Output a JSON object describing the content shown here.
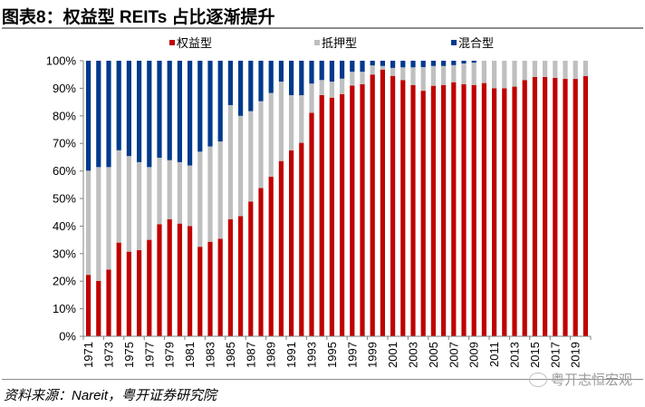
{
  "header": {
    "title": "图表8：权益型 REITs 占比逐渐提升"
  },
  "footer": {
    "source": "资料来源：Nareit，粤开证券研究院",
    "watermark": "粤开志恒宏观"
  },
  "chart_data": {
    "type": "bar",
    "stacked": true,
    "title": "权益型 REITs 占比逐渐提升",
    "xlabel": "",
    "ylabel": "",
    "ylim": [
      0,
      100
    ],
    "y_ticks": [
      "0%",
      "10%",
      "20%",
      "30%",
      "40%",
      "50%",
      "60%",
      "70%",
      "80%",
      "90%",
      "100%"
    ],
    "y_tick_values": [
      0,
      10,
      20,
      30,
      40,
      50,
      60,
      70,
      80,
      90,
      100
    ],
    "grid": false,
    "legend_position": "top-center",
    "categories": [
      "1971",
      "1972",
      "1973",
      "1974",
      "1975",
      "1976",
      "1977",
      "1978",
      "1979",
      "1980",
      "1981",
      "1982",
      "1983",
      "1984",
      "1985",
      "1986",
      "1987",
      "1988",
      "1989",
      "1990",
      "1991",
      "1992",
      "1993",
      "1994",
      "1995",
      "1996",
      "1997",
      "1998",
      "1999",
      "2000",
      "2001",
      "2002",
      "2003",
      "2004",
      "2005",
      "2006",
      "2007",
      "2008",
      "2009",
      "2010",
      "2011",
      "2012",
      "2013",
      "2014",
      "2015",
      "2016",
      "2017",
      "2018",
      "2019",
      "2020"
    ],
    "x_tick_labels": [
      "1971",
      "1973",
      "1975",
      "1977",
      "1979",
      "1981",
      "1983",
      "1985",
      "1987",
      "1989",
      "1991",
      "1993",
      "1995",
      "1997",
      "1999",
      "2001",
      "2003",
      "2005",
      "2007",
      "2009",
      "2011",
      "2013",
      "2015",
      "2017",
      "2019"
    ],
    "series": [
      {
        "name": "权益型",
        "color": "#c00000",
        "values": [
          22.3,
          20.1,
          24.2,
          34.0,
          30.7,
          31.3,
          35.0,
          40.7,
          42.5,
          40.9,
          40.0,
          32.5,
          34.3,
          35.4,
          42.5,
          43.6,
          48.9,
          53.8,
          57.9,
          63.6,
          67.5,
          70.2,
          81.1,
          87.5,
          86.6,
          87.9,
          91.0,
          91.5,
          95.0,
          96.8,
          94.5,
          93.0,
          91.2,
          89.1,
          90.9,
          91.2,
          92.2,
          91.5,
          91.2,
          91.9,
          90.0,
          90.0,
          90.6,
          93.0,
          94.1,
          94.1,
          93.8,
          93.4,
          93.4,
          94.4
        ]
      },
      {
        "name": "抵押型",
        "color": "#bfbfbf",
        "values": [
          37.8,
          41.3,
          37.2,
          33.5,
          34.7,
          31.9,
          26.4,
          24.1,
          21.4,
          22.3,
          22.0,
          34.5,
          34.6,
          35.3,
          41.4,
          36.4,
          32.8,
          31.5,
          30.4,
          28.8,
          20.0,
          17.3,
          10.6,
          5.5,
          5.8,
          5.6,
          5.0,
          4.5,
          3.3,
          1.3,
          2.9,
          4.6,
          6.4,
          8.6,
          7.2,
          6.9,
          6.2,
          7.5,
          8.1,
          8.1,
          10.0,
          10.0,
          9.4,
          7.0,
          5.9,
          5.9,
          6.2,
          6.6,
          6.6,
          5.6
        ]
      },
      {
        "name": "混合型",
        "color": "#003a8c",
        "values": [
          39.9,
          38.6,
          38.6,
          32.5,
          34.6,
          36.8,
          38.6,
          35.2,
          36.1,
          36.8,
          38.0,
          33.0,
          31.1,
          29.3,
          16.1,
          20.0,
          18.3,
          14.7,
          11.7,
          7.6,
          12.5,
          12.5,
          8.3,
          7.0,
          7.6,
          6.5,
          4.0,
          4.0,
          1.7,
          1.9,
          2.6,
          2.4,
          2.4,
          2.3,
          1.9,
          1.9,
          1.6,
          1.0,
          0.7,
          0.0,
          0.0,
          0.0,
          0.0,
          0.0,
          0.0,
          0.0,
          0.0,
          0.0,
          0.0,
          0.0
        ]
      }
    ]
  }
}
